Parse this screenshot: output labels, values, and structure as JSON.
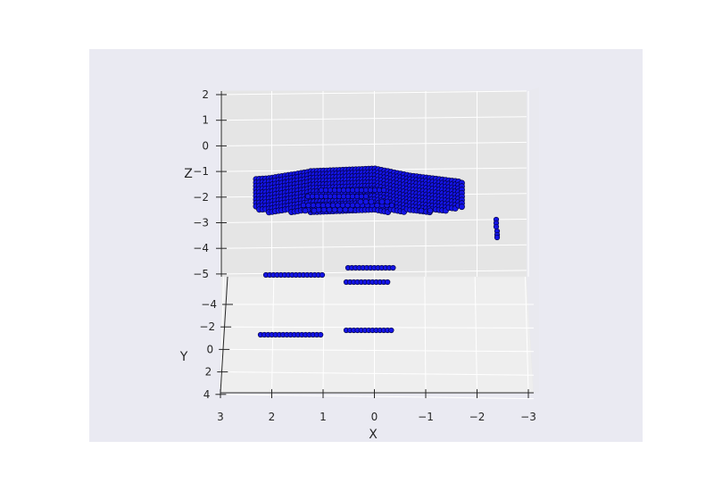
{
  "chart_data": {
    "type": "scatter",
    "projection": "3d",
    "title": "",
    "xlabel": "X",
    "ylabel": "Y",
    "zlabel": "Z",
    "xlim": [
      3,
      -3
    ],
    "ylim": [
      -5,
      4
    ],
    "zlim": [
      -5,
      2
    ],
    "x_ticks": [
      "3",
      "2",
      "1",
      "0",
      "−1",
      "−2",
      "−3"
    ],
    "y_ticks": [
      "−4",
      "−2",
      "0",
      "2",
      "4"
    ],
    "z_ticks": [
      "2",
      "1",
      "0",
      "−1",
      "−2",
      "−3",
      "−4",
      "−5"
    ],
    "grid": true,
    "colors": {
      "marker": "#1414e6",
      "marker_edge": "#000033",
      "axes_background": "#eaeaf2",
      "pane_back": "#e5e5e5",
      "grid": "#ffffff",
      "text": "#262626"
    },
    "series": [
      {
        "values": "lidar point cloud: car body near z ≈ −1.5 to −2.1 spanning x ≈ 2.3 to −1.7, small cluster near x ≈ −2.7, and ground rows near y ≈ −4 and y ≈ −2",
        "points_summary": [
          {
            "part": "car-body",
            "x_range": [
              2.3,
              -1.7
            ],
            "z_range": [
              -2.1,
              -1.3
            ]
          },
          {
            "part": "wheels",
            "x_range": [
              1.4,
              -0.2
            ],
            "z": -2.3
          },
          {
            "part": "pole-right",
            "x": -2.7,
            "z_range": [
              -3.4,
              -2.8
            ]
          },
          {
            "part": "ground-row",
            "y": -4.5,
            "x_range": [
              2.0,
              1.0
            ]
          },
          {
            "part": "ground-row",
            "y": -4.8,
            "x_range": [
              0.5,
              -0.4
            ]
          },
          {
            "part": "ground-row",
            "y": -4.1,
            "x_range": [
              0.5,
              -0.4
            ]
          },
          {
            "part": "ground-row",
            "y": -2.0,
            "x_range": [
              2.2,
              1.0
            ]
          },
          {
            "part": "ground-row",
            "y": -2.1,
            "x_range": [
              0.5,
              -0.4
            ]
          }
        ]
      }
    ]
  }
}
